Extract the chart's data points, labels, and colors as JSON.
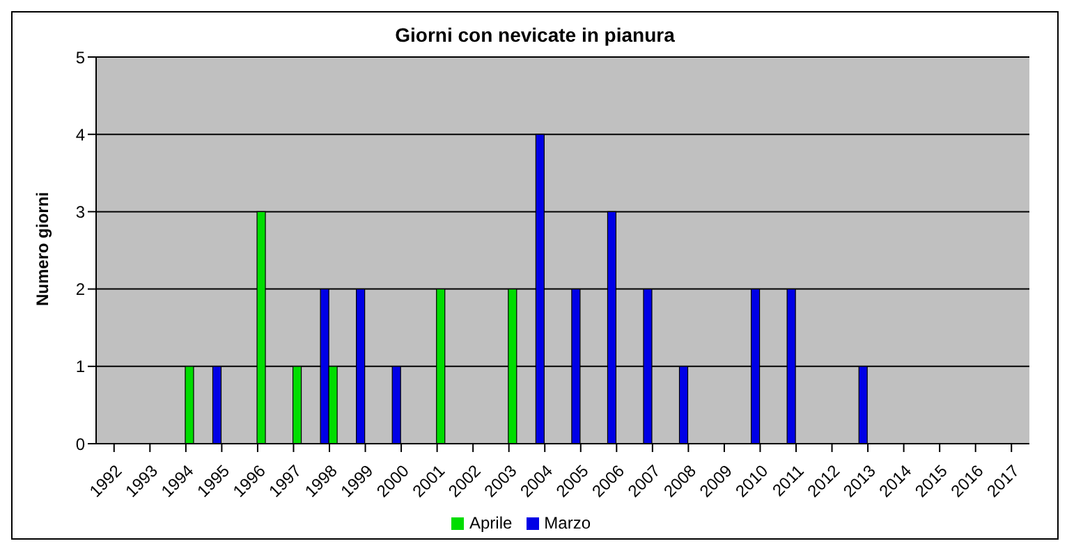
{
  "chart_data": {
    "type": "bar",
    "title": "Giorni con nevicate in pianura",
    "ylabel": "Numero giorni",
    "categories": [
      "1992",
      "1993",
      "1994",
      "1995",
      "1996",
      "1997",
      "1998",
      "1999",
      "2000",
      "2001",
      "2002",
      "2003",
      "2004",
      "2005",
      "2006",
      "2007",
      "2008",
      "2009",
      "2010",
      "2011",
      "2012",
      "2013",
      "2014",
      "2015",
      "2016",
      "2017"
    ],
    "series": [
      {
        "name": "Marzo",
        "color": "#0000e6",
        "values": [
          0,
          0,
          0,
          1,
          0,
          0,
          2,
          2,
          1,
          0,
          0,
          0,
          4,
          2,
          3,
          2,
          1,
          0,
          2,
          2,
          0,
          1,
          0,
          0,
          0,
          0
        ]
      },
      {
        "name": "Aprile",
        "color": "#00dd00",
        "values": [
          0,
          0,
          1,
          0,
          3,
          1,
          1,
          0,
          0,
          2,
          0,
          2,
          0,
          0,
          0,
          0,
          0,
          0,
          0,
          0,
          0,
          0,
          0,
          0,
          0,
          0
        ]
      }
    ],
    "ylim": [
      0,
      5
    ],
    "yticks": [
      0,
      1,
      2,
      3,
      4,
      5
    ],
    "grid": "y",
    "legend": "bottom"
  }
}
